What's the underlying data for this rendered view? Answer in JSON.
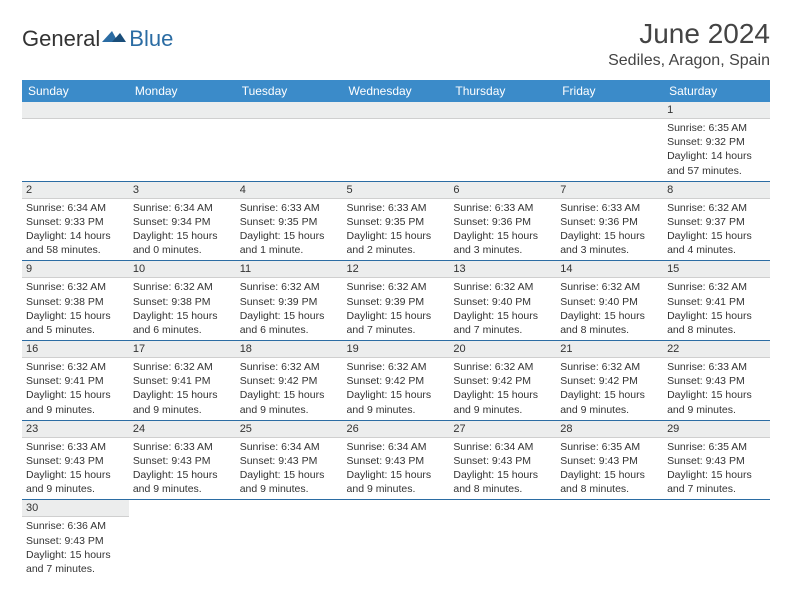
{
  "logo": {
    "text1": "General",
    "text2": "Blue"
  },
  "header": {
    "title": "June 2024",
    "location": "Sediles, Aragon, Spain"
  },
  "colors": {
    "header_bg": "#3b8bc9",
    "header_text": "#ffffff",
    "dayhead_bg": "#eceded",
    "border": "#2b6ca3",
    "logo_blue": "#2b6ca3"
  },
  "calendar": {
    "day_names": [
      "Sunday",
      "Monday",
      "Tuesday",
      "Wednesday",
      "Thursday",
      "Friday",
      "Saturday"
    ],
    "weeks": [
      [
        null,
        null,
        null,
        null,
        null,
        null,
        {
          "n": "1",
          "sunrise": "Sunrise: 6:35 AM",
          "sunset": "Sunset: 9:32 PM",
          "daylight": "Daylight: 14 hours and 57 minutes."
        }
      ],
      [
        {
          "n": "2",
          "sunrise": "Sunrise: 6:34 AM",
          "sunset": "Sunset: 9:33 PM",
          "daylight": "Daylight: 14 hours and 58 minutes."
        },
        {
          "n": "3",
          "sunrise": "Sunrise: 6:34 AM",
          "sunset": "Sunset: 9:34 PM",
          "daylight": "Daylight: 15 hours and 0 minutes."
        },
        {
          "n": "4",
          "sunrise": "Sunrise: 6:33 AM",
          "sunset": "Sunset: 9:35 PM",
          "daylight": "Daylight: 15 hours and 1 minute."
        },
        {
          "n": "5",
          "sunrise": "Sunrise: 6:33 AM",
          "sunset": "Sunset: 9:35 PM",
          "daylight": "Daylight: 15 hours and 2 minutes."
        },
        {
          "n": "6",
          "sunrise": "Sunrise: 6:33 AM",
          "sunset": "Sunset: 9:36 PM",
          "daylight": "Daylight: 15 hours and 3 minutes."
        },
        {
          "n": "7",
          "sunrise": "Sunrise: 6:33 AM",
          "sunset": "Sunset: 9:36 PM",
          "daylight": "Daylight: 15 hours and 3 minutes."
        },
        {
          "n": "8",
          "sunrise": "Sunrise: 6:32 AM",
          "sunset": "Sunset: 9:37 PM",
          "daylight": "Daylight: 15 hours and 4 minutes."
        }
      ],
      [
        {
          "n": "9",
          "sunrise": "Sunrise: 6:32 AM",
          "sunset": "Sunset: 9:38 PM",
          "daylight": "Daylight: 15 hours and 5 minutes."
        },
        {
          "n": "10",
          "sunrise": "Sunrise: 6:32 AM",
          "sunset": "Sunset: 9:38 PM",
          "daylight": "Daylight: 15 hours and 6 minutes."
        },
        {
          "n": "11",
          "sunrise": "Sunrise: 6:32 AM",
          "sunset": "Sunset: 9:39 PM",
          "daylight": "Daylight: 15 hours and 6 minutes."
        },
        {
          "n": "12",
          "sunrise": "Sunrise: 6:32 AM",
          "sunset": "Sunset: 9:39 PM",
          "daylight": "Daylight: 15 hours and 7 minutes."
        },
        {
          "n": "13",
          "sunrise": "Sunrise: 6:32 AM",
          "sunset": "Sunset: 9:40 PM",
          "daylight": "Daylight: 15 hours and 7 minutes."
        },
        {
          "n": "14",
          "sunrise": "Sunrise: 6:32 AM",
          "sunset": "Sunset: 9:40 PM",
          "daylight": "Daylight: 15 hours and 8 minutes."
        },
        {
          "n": "15",
          "sunrise": "Sunrise: 6:32 AM",
          "sunset": "Sunset: 9:41 PM",
          "daylight": "Daylight: 15 hours and 8 minutes."
        }
      ],
      [
        {
          "n": "16",
          "sunrise": "Sunrise: 6:32 AM",
          "sunset": "Sunset: 9:41 PM",
          "daylight": "Daylight: 15 hours and 9 minutes."
        },
        {
          "n": "17",
          "sunrise": "Sunrise: 6:32 AM",
          "sunset": "Sunset: 9:41 PM",
          "daylight": "Daylight: 15 hours and 9 minutes."
        },
        {
          "n": "18",
          "sunrise": "Sunrise: 6:32 AM",
          "sunset": "Sunset: 9:42 PM",
          "daylight": "Daylight: 15 hours and 9 minutes."
        },
        {
          "n": "19",
          "sunrise": "Sunrise: 6:32 AM",
          "sunset": "Sunset: 9:42 PM",
          "daylight": "Daylight: 15 hours and 9 minutes."
        },
        {
          "n": "20",
          "sunrise": "Sunrise: 6:32 AM",
          "sunset": "Sunset: 9:42 PM",
          "daylight": "Daylight: 15 hours and 9 minutes."
        },
        {
          "n": "21",
          "sunrise": "Sunrise: 6:32 AM",
          "sunset": "Sunset: 9:42 PM",
          "daylight": "Daylight: 15 hours and 9 minutes."
        },
        {
          "n": "22",
          "sunrise": "Sunrise: 6:33 AM",
          "sunset": "Sunset: 9:43 PM",
          "daylight": "Daylight: 15 hours and 9 minutes."
        }
      ],
      [
        {
          "n": "23",
          "sunrise": "Sunrise: 6:33 AM",
          "sunset": "Sunset: 9:43 PM",
          "daylight": "Daylight: 15 hours and 9 minutes."
        },
        {
          "n": "24",
          "sunrise": "Sunrise: 6:33 AM",
          "sunset": "Sunset: 9:43 PM",
          "daylight": "Daylight: 15 hours and 9 minutes."
        },
        {
          "n": "25",
          "sunrise": "Sunrise: 6:34 AM",
          "sunset": "Sunset: 9:43 PM",
          "daylight": "Daylight: 15 hours and 9 minutes."
        },
        {
          "n": "26",
          "sunrise": "Sunrise: 6:34 AM",
          "sunset": "Sunset: 9:43 PM",
          "daylight": "Daylight: 15 hours and 9 minutes."
        },
        {
          "n": "27",
          "sunrise": "Sunrise: 6:34 AM",
          "sunset": "Sunset: 9:43 PM",
          "daylight": "Daylight: 15 hours and 8 minutes."
        },
        {
          "n": "28",
          "sunrise": "Sunrise: 6:35 AM",
          "sunset": "Sunset: 9:43 PM",
          "daylight": "Daylight: 15 hours and 8 minutes."
        },
        {
          "n": "29",
          "sunrise": "Sunrise: 6:35 AM",
          "sunset": "Sunset: 9:43 PM",
          "daylight": "Daylight: 15 hours and 7 minutes."
        }
      ],
      [
        {
          "n": "30",
          "sunrise": "Sunrise: 6:36 AM",
          "sunset": "Sunset: 9:43 PM",
          "daylight": "Daylight: 15 hours and 7 minutes."
        },
        null,
        null,
        null,
        null,
        null,
        null
      ]
    ]
  }
}
